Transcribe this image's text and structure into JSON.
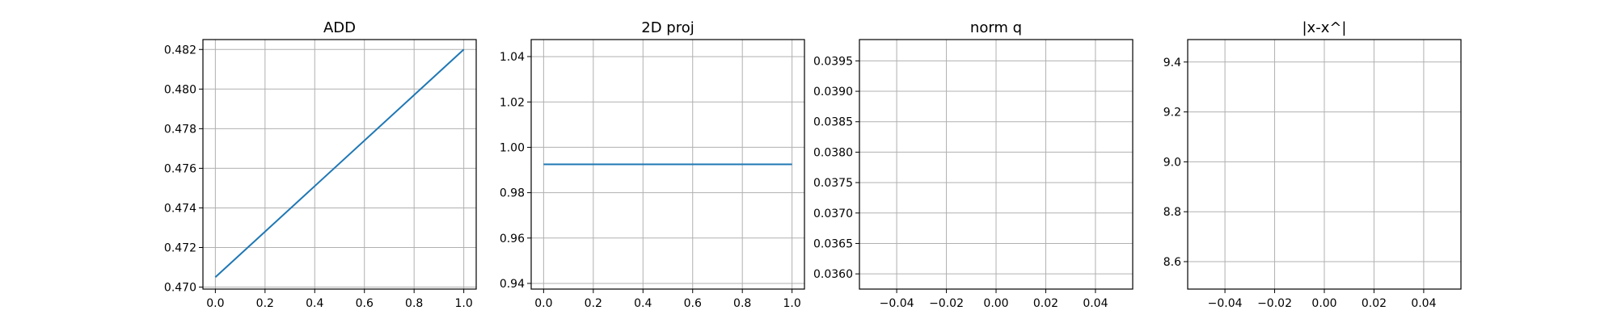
{
  "chart_data": [
    {
      "type": "line",
      "title": "ADD",
      "xlabel": "",
      "ylabel": "",
      "grid": true,
      "xlim": [
        -0.05,
        1.05
      ],
      "ylim": [
        0.4699,
        0.4825
      ],
      "xticks": [
        0.0,
        0.2,
        0.4,
        0.6,
        0.8,
        1.0
      ],
      "xtick_labels": [
        "0.0",
        "0.2",
        "0.4",
        "0.6",
        "0.8",
        "1.0"
      ],
      "yticks": [
        0.47,
        0.472,
        0.474,
        0.476,
        0.478,
        0.48,
        0.482
      ],
      "ytick_labels": [
        "0.470",
        "0.472",
        "0.474",
        "0.476",
        "0.478",
        "0.480",
        "0.482"
      ],
      "series": [
        {
          "x": [
            0.0,
            1.0
          ],
          "y": [
            0.4705,
            0.482
          ],
          "color": "#1f77b4"
        }
      ]
    },
    {
      "type": "line",
      "title": "2D proj",
      "xlabel": "",
      "ylabel": "",
      "grid": true,
      "xlim": [
        -0.05,
        1.05
      ],
      "ylim": [
        0.9375,
        1.0475
      ],
      "xticks": [
        0.0,
        0.2,
        0.4,
        0.6,
        0.8,
        1.0
      ],
      "xtick_labels": [
        "0.0",
        "0.2",
        "0.4",
        "0.6",
        "0.8",
        "1.0"
      ],
      "yticks": [
        0.94,
        0.96,
        0.98,
        1.0,
        1.02,
        1.04
      ],
      "ytick_labels": [
        "0.94",
        "0.96",
        "0.98",
        "1.00",
        "1.02",
        "1.04"
      ],
      "series": [
        {
          "x": [
            0.0,
            1.0
          ],
          "y": [
            0.9925,
            0.9925
          ],
          "color": "#1f77b4"
        }
      ]
    },
    {
      "type": "line",
      "title": "norm q",
      "xlabel": "",
      "ylabel": "",
      "grid": true,
      "xlim": [
        -0.055,
        0.055
      ],
      "ylim": [
        0.03575,
        0.03985
      ],
      "xticks": [
        -0.04,
        -0.02,
        0.0,
        0.02,
        0.04
      ],
      "xtick_labels": [
        "−0.04",
        "−0.02",
        "0.00",
        "0.02",
        "0.04"
      ],
      "yticks": [
        0.036,
        0.0365,
        0.037,
        0.0375,
        0.038,
        0.0385,
        0.039,
        0.0395
      ],
      "ytick_labels": [
        "0.0360",
        "0.0365",
        "0.0370",
        "0.0375",
        "0.0380",
        "0.0385",
        "0.0390",
        "0.0395"
      ],
      "series": []
    },
    {
      "type": "line",
      "title": "|x-x^|",
      "xlabel": "",
      "ylabel": "",
      "grid": true,
      "xlim": [
        -0.055,
        0.055
      ],
      "ylim": [
        8.49,
        9.49
      ],
      "xticks": [
        -0.04,
        -0.02,
        0.0,
        0.02,
        0.04
      ],
      "xtick_labels": [
        "−0.04",
        "−0.02",
        "0.00",
        "0.02",
        "0.04"
      ],
      "yticks": [
        8.6,
        8.8,
        9.0,
        9.2,
        9.4
      ],
      "ytick_labels": [
        "8.6",
        "8.8",
        "9.0",
        "9.2",
        "9.4"
      ],
      "series": []
    }
  ]
}
